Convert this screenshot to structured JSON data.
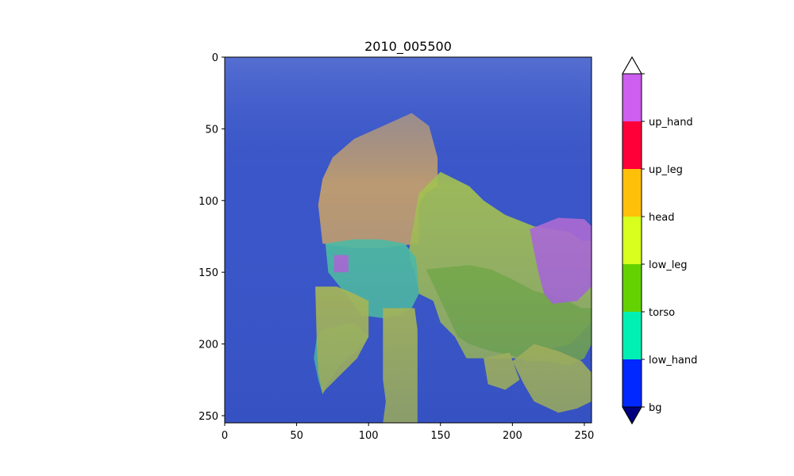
{
  "chart_data": {
    "type": "heatmap",
    "title": "2010_005500",
    "xlabel": "",
    "ylabel": "",
    "xlim": [
      0,
      255
    ],
    "ylim": [
      255,
      0
    ],
    "xticks": [
      0,
      50,
      100,
      150,
      200,
      250
    ],
    "yticks": [
      0,
      50,
      100,
      150,
      200,
      250
    ],
    "image_description_note": "beach photo with semi-transparent segmentation overlay",
    "colorbar": {
      "extend": "both",
      "under_color": "#00007f",
      "over_color": "#ffffff",
      "classes": [
        {
          "name": "bg",
          "color": "#0028ff"
        },
        {
          "name": "low_hand",
          "color": "#00f0b4"
        },
        {
          "name": "torso",
          "color": "#64d200"
        },
        {
          "name": "low_leg",
          "color": "#d8ff1e"
        },
        {
          "name": "head",
          "color": "#ffc00a"
        },
        {
          "name": "up_leg",
          "color": "#ff0038"
        },
        {
          "name": "up_hand",
          "color": "#cc5ef0"
        }
      ],
      "tick_labels": [
        "bg",
        "low_hand",
        "torso",
        "low_leg",
        "head",
        "up_leg",
        "up_hand"
      ]
    },
    "regions": [
      {
        "label": "bg",
        "color": "#3a56c8",
        "points": [
          [
            0,
            0
          ],
          [
            255,
            0
          ],
          [
            255,
            255
          ],
          [
            0,
            255
          ]
        ]
      },
      {
        "label": "head",
        "color": "#c6a06a",
        "points": [
          [
            65,
            103
          ],
          [
            68,
            85
          ],
          [
            75,
            70
          ],
          [
            90,
            57
          ],
          [
            110,
            48
          ],
          [
            130,
            39
          ],
          [
            142,
            48
          ],
          [
            148,
            70
          ],
          [
            148,
            90
          ],
          [
            140,
            95
          ],
          [
            135,
            103
          ],
          [
            135,
            118
          ],
          [
            135,
            130
          ],
          [
            110,
            133
          ],
          [
            90,
            133
          ],
          [
            68,
            130
          ]
        ]
      },
      {
        "label": "low_leg",
        "color": "#a4c050",
        "points": [
          [
            135,
            95
          ],
          [
            150,
            80
          ],
          [
            170,
            90
          ],
          [
            180,
            100
          ],
          [
            195,
            110
          ],
          [
            215,
            118
          ],
          [
            240,
            122
          ],
          [
            248,
            128
          ],
          [
            255,
            128
          ],
          [
            255,
            185
          ],
          [
            240,
            200
          ],
          [
            220,
            205
          ],
          [
            205,
            210
          ],
          [
            190,
            210
          ],
          [
            180,
            210
          ],
          [
            168,
            210
          ],
          [
            160,
            195
          ],
          [
            150,
            185
          ],
          [
            145,
            170
          ],
          [
            135,
            165
          ],
          [
            132,
            150
          ],
          [
            130,
            145
          ],
          [
            128,
            135
          ]
        ]
      },
      {
        "label": "torso",
        "color": "#7cb040",
        "points": [
          [
            140,
            148
          ],
          [
            170,
            145
          ],
          [
            185,
            148
          ],
          [
            200,
            155
          ],
          [
            215,
            163
          ],
          [
            235,
            168
          ],
          [
            248,
            175
          ],
          [
            255,
            175
          ],
          [
            255,
            200
          ],
          [
            250,
            210
          ],
          [
            240,
            215
          ],
          [
            222,
            212
          ],
          [
            210,
            212
          ],
          [
            200,
            208
          ],
          [
            185,
            205
          ],
          [
            170,
            200
          ],
          [
            162,
            195
          ]
        ]
      },
      {
        "label": "up_hand",
        "color": "#b06ad4",
        "points": [
          [
            212,
            120
          ],
          [
            232,
            112
          ],
          [
            250,
            113
          ],
          [
            255,
            118
          ],
          [
            255,
            160
          ],
          [
            245,
            170
          ],
          [
            228,
            172
          ],
          [
            222,
            165
          ],
          [
            218,
            150
          ],
          [
            215,
            135
          ]
        ]
      },
      {
        "label": "low_hand",
        "color": "#50c0a0",
        "points": [
          [
            70,
            130
          ],
          [
            90,
            127
          ],
          [
            108,
            127
          ],
          [
            125,
            130
          ],
          [
            133,
            140
          ],
          [
            135,
            165
          ],
          [
            130,
            175
          ],
          [
            120,
            180
          ],
          [
            110,
            182
          ],
          [
            95,
            180
          ],
          [
            88,
            170
          ],
          [
            80,
            160
          ],
          [
            72,
            150
          ]
        ]
      },
      {
        "label": "low_hand",
        "color": "#50c0a0",
        "points": [
          [
            68,
            190
          ],
          [
            90,
            185
          ],
          [
            100,
            195
          ],
          [
            92,
            205
          ],
          [
            80,
            215
          ],
          [
            70,
            230
          ],
          [
            68,
            235
          ],
          [
            65,
            225
          ],
          [
            62,
            210
          ],
          [
            64,
            195
          ]
        ]
      },
      {
        "label": "low_leg",
        "color": "#b4c24a",
        "points": [
          [
            110,
            175
          ],
          [
            132,
            175
          ],
          [
            134,
            190
          ],
          [
            134,
            210
          ],
          [
            134,
            230
          ],
          [
            134,
            248
          ],
          [
            134,
            255
          ],
          [
            110,
            255
          ],
          [
            112,
            240
          ],
          [
            110,
            225
          ],
          [
            110,
            205
          ]
        ]
      },
      {
        "label": "low_leg",
        "color": "#b4c24a",
        "points": [
          [
            63,
            160
          ],
          [
            78,
            160
          ],
          [
            90,
            165
          ],
          [
            100,
            170
          ],
          [
            100,
            195
          ],
          [
            92,
            210
          ],
          [
            80,
            222
          ],
          [
            70,
            232
          ],
          [
            68,
            235
          ],
          [
            65,
            220
          ],
          [
            64,
            200
          ]
        ]
      },
      {
        "label": "low_leg",
        "color": "#b4c24a",
        "points": [
          [
            200,
            212
          ],
          [
            215,
            200
          ],
          [
            232,
            205
          ],
          [
            248,
            212
          ],
          [
            255,
            220
          ],
          [
            255,
            240
          ],
          [
            245,
            245
          ],
          [
            232,
            248
          ],
          [
            215,
            240
          ],
          [
            208,
            228
          ]
        ]
      },
      {
        "label": "low_leg",
        "color": "#b4c24a",
        "points": [
          [
            180,
            210
          ],
          [
            198,
            206
          ],
          [
            205,
            225
          ],
          [
            195,
            232
          ],
          [
            183,
            228
          ]
        ]
      },
      {
        "label": "up_hand",
        "color": "#b06ad4",
        "points": [
          [
            76,
            138
          ],
          [
            86,
            138
          ],
          [
            86,
            150
          ],
          [
            76,
            150
          ]
        ]
      }
    ]
  }
}
